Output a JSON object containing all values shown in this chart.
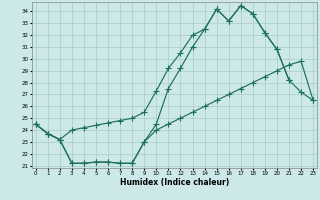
{
  "xlabel": "Humidex (Indice chaleur)",
  "color": "#1e7060",
  "background": "#cce8e8",
  "grid_color": "#aacccc",
  "ylim_min": 20.8,
  "ylim_max": 34.8,
  "xlim_min": -0.3,
  "xlim_max": 23.3,
  "yticks": [
    21,
    22,
    23,
    24,
    25,
    26,
    27,
    28,
    29,
    30,
    31,
    32,
    33,
    34
  ],
  "xticks": [
    0,
    1,
    2,
    3,
    4,
    5,
    6,
    7,
    8,
    9,
    10,
    11,
    12,
    13,
    14,
    15,
    16,
    17,
    18,
    19,
    20,
    21,
    22,
    23
  ],
  "line_upper_x": [
    0,
    1,
    2,
    3,
    4,
    5,
    6,
    7,
    8,
    9,
    10,
    11,
    12,
    13,
    14,
    15,
    16,
    17,
    18,
    19,
    20,
    21
  ],
  "line_upper_y": [
    24.5,
    23.7,
    23.2,
    24.0,
    24.2,
    24.4,
    24.6,
    24.8,
    25.0,
    25.5,
    27.3,
    29.2,
    30.5,
    32.0,
    32.5,
    34.2,
    33.2,
    34.5,
    33.8,
    32.2,
    30.8,
    28.2
  ],
  "line_mid_x": [
    0,
    1,
    2,
    3,
    4,
    5,
    6,
    7,
    8,
    9,
    10,
    11,
    12,
    13,
    14,
    15,
    16,
    17,
    18,
    19,
    20,
    21,
    22,
    23
  ],
  "line_mid_y": [
    24.5,
    23.7,
    23.2,
    21.2,
    21.2,
    21.3,
    21.3,
    21.2,
    21.2,
    23.0,
    24.5,
    27.5,
    29.2,
    31.0,
    32.5,
    34.2,
    33.2,
    34.5,
    33.8,
    32.2,
    30.8,
    28.2,
    27.2,
    26.5
  ],
  "line_lower_x": [
    0,
    1,
    2,
    3,
    4,
    5,
    6,
    7,
    8,
    9,
    10,
    11,
    12,
    13,
    14,
    15,
    16,
    17,
    18,
    19,
    20,
    21,
    22,
    23
  ],
  "line_lower_y": [
    24.5,
    23.7,
    23.2,
    21.2,
    21.2,
    21.3,
    21.3,
    21.2,
    21.2,
    23.0,
    24.0,
    24.5,
    25.0,
    25.5,
    26.0,
    26.5,
    27.0,
    27.5,
    28.0,
    28.5,
    29.0,
    29.5,
    29.8,
    26.5
  ]
}
